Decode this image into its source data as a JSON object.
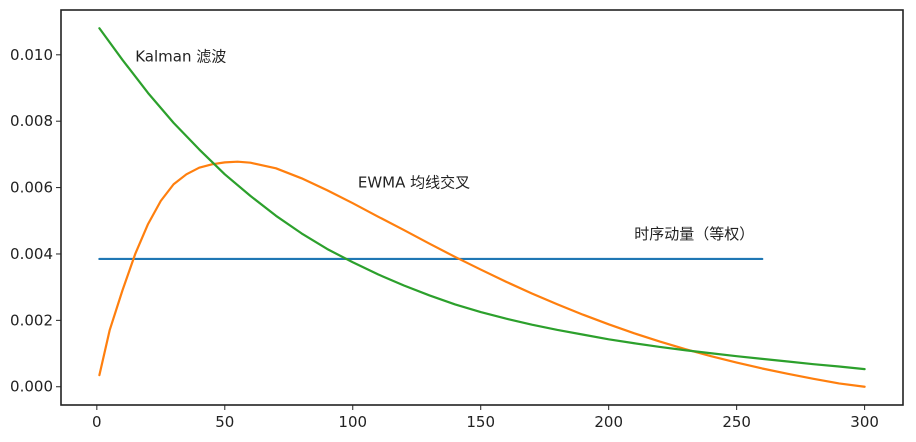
{
  "chart_data": {
    "type": "line",
    "xlim": [
      -14,
      315
    ],
    "ylim": [
      -0.00055,
      0.01135
    ],
    "xticks": [
      0,
      50,
      100,
      150,
      200,
      250,
      300
    ],
    "yticks": [
      0.0,
      0.002,
      0.004,
      0.006,
      0.008,
      0.01
    ],
    "x_tick_labels": [
      "0",
      "50",
      "100",
      "150",
      "200",
      "250",
      "300"
    ],
    "y_tick_labels": [
      "0.000",
      "0.002",
      "0.004",
      "0.006",
      "0.008",
      "0.010"
    ],
    "grid": false,
    "series": [
      {
        "color": "#1f77b4",
        "x": [
          1,
          260
        ],
        "y": [
          0.00385,
          0.00385
        ]
      },
      {
        "color": "#ff7f0e",
        "x": [
          1,
          5,
          10,
          15,
          20,
          25,
          30,
          35,
          40,
          45,
          50,
          55,
          60,
          70,
          80,
          90,
          100,
          110,
          120,
          130,
          140,
          150,
          160,
          170,
          180,
          190,
          200,
          210,
          220,
          230,
          240,
          250,
          260,
          270,
          280,
          290,
          300
        ],
        "y": [
          0.00035,
          0.0017,
          0.0029,
          0.004,
          0.0049,
          0.0056,
          0.0061,
          0.0064,
          0.0066,
          0.0067,
          0.00676,
          0.00678,
          0.00675,
          0.00658,
          0.00628,
          0.00592,
          0.00553,
          0.00512,
          0.00472,
          0.00431,
          0.00391,
          0.00353,
          0.00316,
          0.00281,
          0.00248,
          0.00217,
          0.00188,
          0.00161,
          0.00136,
          0.00113,
          0.00092,
          0.00073,
          0.00055,
          0.00039,
          0.00024,
          0.0001,
          0.0
        ]
      },
      {
        "color": "#2ca02c",
        "x": [
          1,
          10,
          20,
          30,
          40,
          50,
          60,
          70,
          80,
          90,
          100,
          110,
          120,
          130,
          140,
          150,
          160,
          170,
          180,
          190,
          200,
          210,
          220,
          230,
          240,
          250,
          260,
          270,
          280,
          290,
          300
        ],
        "y": [
          0.0108,
          0.00985,
          0.00885,
          0.00795,
          0.00715,
          0.0064,
          0.00575,
          0.00515,
          0.00462,
          0.00415,
          0.00375,
          0.00338,
          0.00305,
          0.00275,
          0.00248,
          0.00225,
          0.00205,
          0.00187,
          0.00171,
          0.00157,
          0.00143,
          0.00131,
          0.0012,
          0.0011,
          0.00101,
          0.00092,
          0.00084,
          0.00076,
          0.00068,
          0.00061,
          0.00053
        ]
      }
    ],
    "annotations": [
      {
        "text": "Kalman 滤波",
        "x": 15,
        "y": 0.0098
      },
      {
        "text": "EWMA 均线交叉",
        "x": 102,
        "y": 0.006
      },
      {
        "text": "时序动量（等权）",
        "x": 210,
        "y": 0.00445
      }
    ]
  }
}
